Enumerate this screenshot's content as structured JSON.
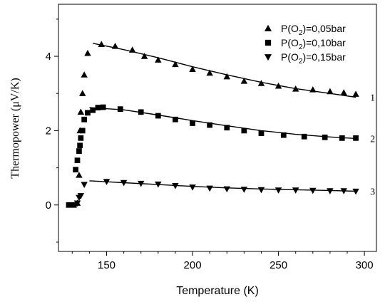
{
  "chart_data": {
    "type": "scatter",
    "title": "",
    "xlabel": "Temperature (K)",
    "ylabel": "Thermopower (μV/K)",
    "xlim": [
      122,
      307
    ],
    "ylim": [
      -1.25,
      5.4
    ],
    "xticks": [
      150,
      200,
      250,
      300
    ],
    "yticks": [
      0,
      2,
      4
    ],
    "x_minor_step": 10,
    "y_minor_step": 1,
    "grid": false,
    "legend_position": "top-right",
    "series": [
      {
        "name": "P(O2)=0,05bar",
        "name_main": "P(O",
        "name_sub": "2",
        "name_rest": ")=0,05bar",
        "marker": "triangle-up",
        "curve_label": "1",
        "color": "#000000",
        "points": [
          [
            133,
            0.05
          ],
          [
            134,
            0.8
          ],
          [
            134.5,
            2.0
          ],
          [
            135,
            2.5
          ],
          [
            136,
            3.0
          ],
          [
            137,
            3.5
          ],
          [
            139,
            4.08
          ],
          [
            147,
            4.32
          ],
          [
            155,
            4.27
          ],
          [
            165,
            4.17
          ],
          [
            172,
            4.0
          ],
          [
            180,
            3.9
          ],
          [
            190,
            3.78
          ],
          [
            200,
            3.65
          ],
          [
            210,
            3.55
          ],
          [
            220,
            3.45
          ],
          [
            230,
            3.33
          ],
          [
            240,
            3.27
          ],
          [
            250,
            3.2
          ],
          [
            260,
            3.12
          ],
          [
            270,
            3.1
          ],
          [
            280,
            3.05
          ],
          [
            288,
            3.02
          ],
          [
            295,
            2.98
          ]
        ],
        "fit": [
          [
            142,
            4.35
          ],
          [
            160,
            4.18
          ],
          [
            180,
            3.96
          ],
          [
            200,
            3.72
          ],
          [
            220,
            3.5
          ],
          [
            240,
            3.3
          ],
          [
            260,
            3.13
          ],
          [
            280,
            3.0
          ],
          [
            295,
            2.9
          ]
        ]
      },
      {
        "name": "P(O2)=0,10bar",
        "name_main": "P(O",
        "name_sub": "2",
        "name_rest": ")=0,10bar",
        "marker": "square",
        "curve_label": "2",
        "color": "#000000",
        "points": [
          [
            128,
            0.0
          ],
          [
            131,
            0.0
          ],
          [
            132,
            0.95
          ],
          [
            133,
            1.2
          ],
          [
            134,
            1.45
          ],
          [
            134.5,
            1.6
          ],
          [
            135,
            1.8
          ],
          [
            136,
            2.0
          ],
          [
            137,
            2.3
          ],
          [
            139,
            2.48
          ],
          [
            142,
            2.55
          ],
          [
            145,
            2.62
          ],
          [
            148,
            2.63
          ],
          [
            158,
            2.58
          ],
          [
            170,
            2.5
          ],
          [
            180,
            2.4
          ],
          [
            190,
            2.3
          ],
          [
            200,
            2.2
          ],
          [
            210,
            2.15
          ],
          [
            220,
            2.08
          ],
          [
            230,
            2.0
          ],
          [
            240,
            1.93
          ],
          [
            253,
            1.88
          ],
          [
            265,
            1.84
          ],
          [
            277,
            1.82
          ],
          [
            287,
            1.8
          ],
          [
            295,
            1.8
          ]
        ],
        "fit": [
          [
            140,
            2.62
          ],
          [
            160,
            2.56
          ],
          [
            180,
            2.42
          ],
          [
            200,
            2.27
          ],
          [
            220,
            2.13
          ],
          [
            240,
            2.0
          ],
          [
            260,
            1.9
          ],
          [
            280,
            1.83
          ],
          [
            295,
            1.79
          ]
        ]
      },
      {
        "name": "P(O2)=0,15bar",
        "name_main": "P(O",
        "name_sub": "2",
        "name_rest": ")=0,15bar",
        "marker": "triangle-down",
        "curve_label": "3",
        "color": "#000000",
        "points": [
          [
            133,
            0.05
          ],
          [
            134,
            0.2
          ],
          [
            135,
            0.25
          ],
          [
            137,
            0.55
          ],
          [
            150,
            0.63
          ],
          [
            160,
            0.6
          ],
          [
            170,
            0.58
          ],
          [
            180,
            0.56
          ],
          [
            190,
            0.52
          ],
          [
            200,
            0.48
          ],
          [
            210,
            0.45
          ],
          [
            220,
            0.43
          ],
          [
            230,
            0.42
          ],
          [
            240,
            0.41
          ],
          [
            250,
            0.4
          ],
          [
            260,
            0.4
          ],
          [
            270,
            0.39
          ],
          [
            280,
            0.38
          ],
          [
            288,
            0.38
          ],
          [
            295,
            0.37
          ]
        ],
        "fit": [
          [
            140,
            0.65
          ],
          [
            160,
            0.6
          ],
          [
            180,
            0.55
          ],
          [
            200,
            0.5
          ],
          [
            220,
            0.46
          ],
          [
            240,
            0.43
          ],
          [
            260,
            0.41
          ],
          [
            280,
            0.39
          ],
          [
            295,
            0.37
          ]
        ]
      }
    ]
  }
}
